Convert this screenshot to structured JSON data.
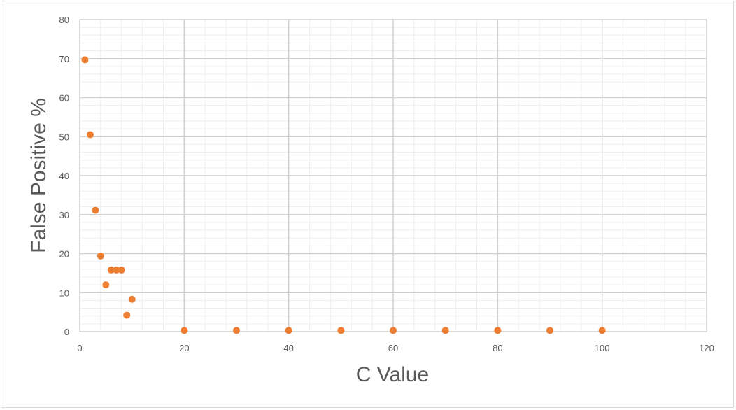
{
  "chart_data": {
    "type": "scatter",
    "xlabel": "C Value",
    "ylabel": "False Positive %",
    "xlim": [
      0,
      120
    ],
    "ylim": [
      0,
      80
    ],
    "x_ticks": [
      "0",
      "20",
      "40",
      "60",
      "80",
      "100",
      "120"
    ],
    "y_ticks": [
      "0",
      "10",
      "20",
      "30",
      "40",
      "50",
      "60",
      "70",
      "80"
    ],
    "x_major_step": 20,
    "x_minor_step": 4,
    "y_major_step": 10,
    "y_minor_step": 2,
    "grid": true,
    "legend": "none",
    "marker_color": "#ED7D31",
    "series": [
      {
        "x": [
          1,
          2,
          3,
          4,
          5,
          6,
          7,
          8,
          9,
          10,
          20,
          30,
          40,
          50,
          60,
          70,
          80,
          90,
          100
        ],
        "y": [
          69.7,
          50.5,
          31.1,
          19.4,
          12.0,
          15.8,
          15.8,
          15.8,
          4.2,
          8.3,
          0.3,
          0.3,
          0.3,
          0.3,
          0.3,
          0.3,
          0.3,
          0.3,
          0.3
        ]
      }
    ]
  }
}
